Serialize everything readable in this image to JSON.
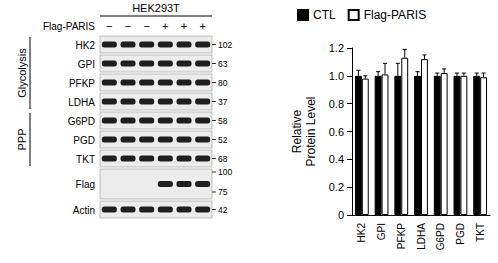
{
  "chart_data": {
    "type": "bar",
    "categories": [
      "HK2",
      "GPI",
      "PFKP",
      "LDHA",
      "G6PD",
      "PGD",
      "TKT"
    ],
    "series": [
      {
        "name": "CTL",
        "color": "#000000",
        "values": [
          1,
          1,
          1,
          1,
          1,
          1,
          1
        ],
        "errors": [
          0.04,
          0.03,
          0.09,
          0.03,
          0.02,
          0.02,
          0.02
        ]
      },
      {
        "name": "Flag-PARIS",
        "color": "#ffffff",
        "values": [
          0.98,
          1.01,
          1.13,
          1.12,
          1.02,
          1.0,
          0.99
        ],
        "errors": [
          0.02,
          0.08,
          0.06,
          0.03,
          0.03,
          0.02,
          0.03
        ]
      }
    ],
    "ylabel": "Relative\nProtein Level",
    "ylim": [
      0,
      1.2
    ],
    "yticks": [
      0,
      0.2,
      0.4,
      0.6,
      0.8,
      {
        "value": 1,
        "label": "1.0"
      },
      1.2
    ],
    "legend": "top",
    "grid": false
  },
  "blot": {
    "cell_line": "HEK293T",
    "row_label": "Flag-PARIS",
    "lanes": [
      "−",
      "−",
      "−",
      "+",
      "+",
      "+"
    ],
    "groups": [
      {
        "name": "Glycolysis",
        "rows": [
          "HK2",
          "GPI",
          "PFKP",
          "LDHA"
        ]
      },
      {
        "name": "PPP",
        "rows": [
          "G6PD",
          "PGD",
          "TKT"
        ]
      }
    ],
    "rows": [
      {
        "label": "HK2",
        "mw": [
          "102"
        ]
      },
      {
        "label": "GPI",
        "mw": [
          "63"
        ]
      },
      {
        "label": "PFKP",
        "mw": [
          "80"
        ]
      },
      {
        "label": "LDHA",
        "mw": [
          "37"
        ]
      },
      {
        "label": "G6PD",
        "mw": [
          "58"
        ]
      },
      {
        "label": "PGD",
        "mw": [
          "52"
        ]
      },
      {
        "label": "TKT",
        "mw": [
          "68"
        ]
      },
      {
        "label": "Flag",
        "mw": [
          "100",
          "75"
        ]
      },
      {
        "label": "Actin",
        "mw": [
          "42"
        ]
      }
    ]
  }
}
